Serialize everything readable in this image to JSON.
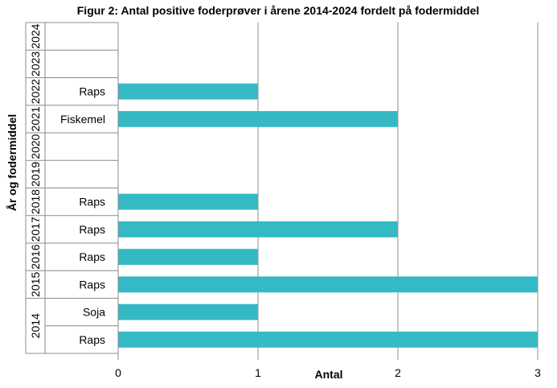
{
  "chart_data": {
    "type": "bar",
    "orientation": "horizontal",
    "title": "Figur 2: Antal positive foderprøver i årene 2014-2024 fordelt på fodermiddel",
    "xlabel": "Antal",
    "ylabel": "År og fodermiddel",
    "xlim": [
      0,
      3
    ],
    "xticks": [
      "0",
      "1",
      "2",
      "3"
    ],
    "grid": "vertical",
    "bar_color": "#35b9c4",
    "rows": [
      {
        "year": "2014",
        "category": "Raps",
        "value": 3
      },
      {
        "year": "2014",
        "category": "Soja",
        "value": 1
      },
      {
        "year": "2015",
        "category": "Raps",
        "value": 3
      },
      {
        "year": "2016",
        "category": "Raps",
        "value": 1
      },
      {
        "year": "2017",
        "category": "Raps",
        "value": 2
      },
      {
        "year": "2018",
        "category": "Raps",
        "value": 1
      },
      {
        "year": "2019",
        "category": "",
        "value": 0
      },
      {
        "year": "2020",
        "category": "",
        "value": 0
      },
      {
        "year": "2021",
        "category": "Fiskemel",
        "value": 2
      },
      {
        "year": "2022",
        "category": "Raps",
        "value": 1
      },
      {
        "year": "2023",
        "category": "",
        "value": 0
      },
      {
        "year": "2024",
        "category": "",
        "value": 0
      }
    ],
    "years": [
      "2014",
      "2015",
      "2016",
      "2017",
      "2018",
      "2019",
      "2020",
      "2021",
      "2022",
      "2023",
      "2024"
    ]
  }
}
